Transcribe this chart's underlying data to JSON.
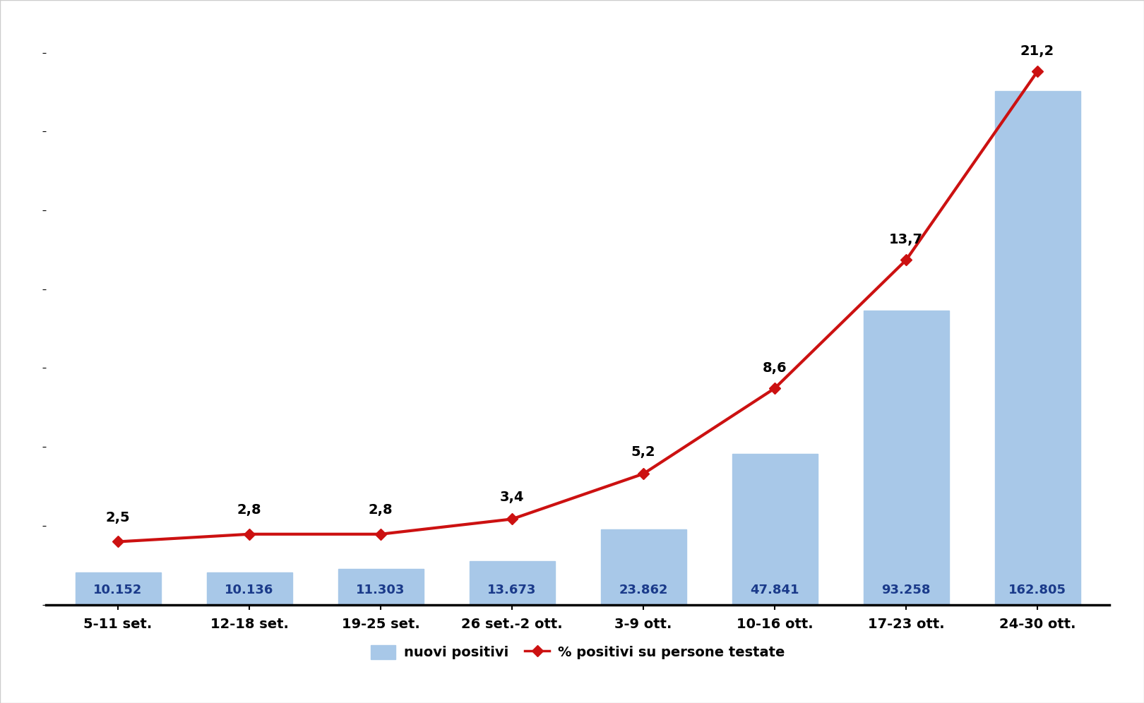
{
  "categories": [
    "5-11 set.",
    "12-18 set.",
    "19-25 set.",
    "26 set.-2 ott.",
    "3-9 ott.",
    "10-16 ott.",
    "17-23 ott.",
    "24-30 ott."
  ],
  "bar_values": [
    10152,
    10136,
    11303,
    13673,
    23862,
    47841,
    93258,
    162805
  ],
  "bar_labels": [
    "10.152",
    "10.136",
    "11.303",
    "13.673",
    "23.862",
    "47.841",
    "93.258",
    "162.805"
  ],
  "line_values": [
    2.5,
    2.8,
    2.8,
    3.4,
    5.2,
    8.6,
    13.7,
    21.2
  ],
  "line_labels": [
    "2,5",
    "2,8",
    "2,8",
    "3,4",
    "5,2",
    "8,6",
    "13,7",
    "21,2"
  ],
  "bar_color": "#a8c8e8",
  "line_color": "#cc1111",
  "bar_label_color": "#1a3a8a",
  "background_color": "#ffffff",
  "legend_bar_label": "nuovi positivi",
  "legend_line_label": "% positivi su persone testate",
  "ylim_bar": [
    0,
    185000
  ],
  "ylim_line": [
    0,
    23.2
  ],
  "bar_width": 0.65,
  "line_label_offsets": [
    0.7,
    0.7,
    0.7,
    0.6,
    0.6,
    0.55,
    0.55,
    0.55
  ]
}
